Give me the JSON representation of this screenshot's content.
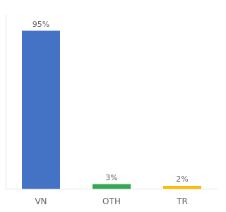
{
  "chart_data": {
    "type": "bar",
    "categories": [
      "VN",
      "OTH",
      "TR"
    ],
    "values": [
      95,
      3,
      2
    ],
    "value_labels": [
      "95%",
      "3%",
      "2%"
    ],
    "colors": [
      "#4472c4",
      "#34a853",
      "#fbbc04"
    ],
    "ylim": [
      0,
      105
    ],
    "tick_labels": "x",
    "grid": false
  }
}
